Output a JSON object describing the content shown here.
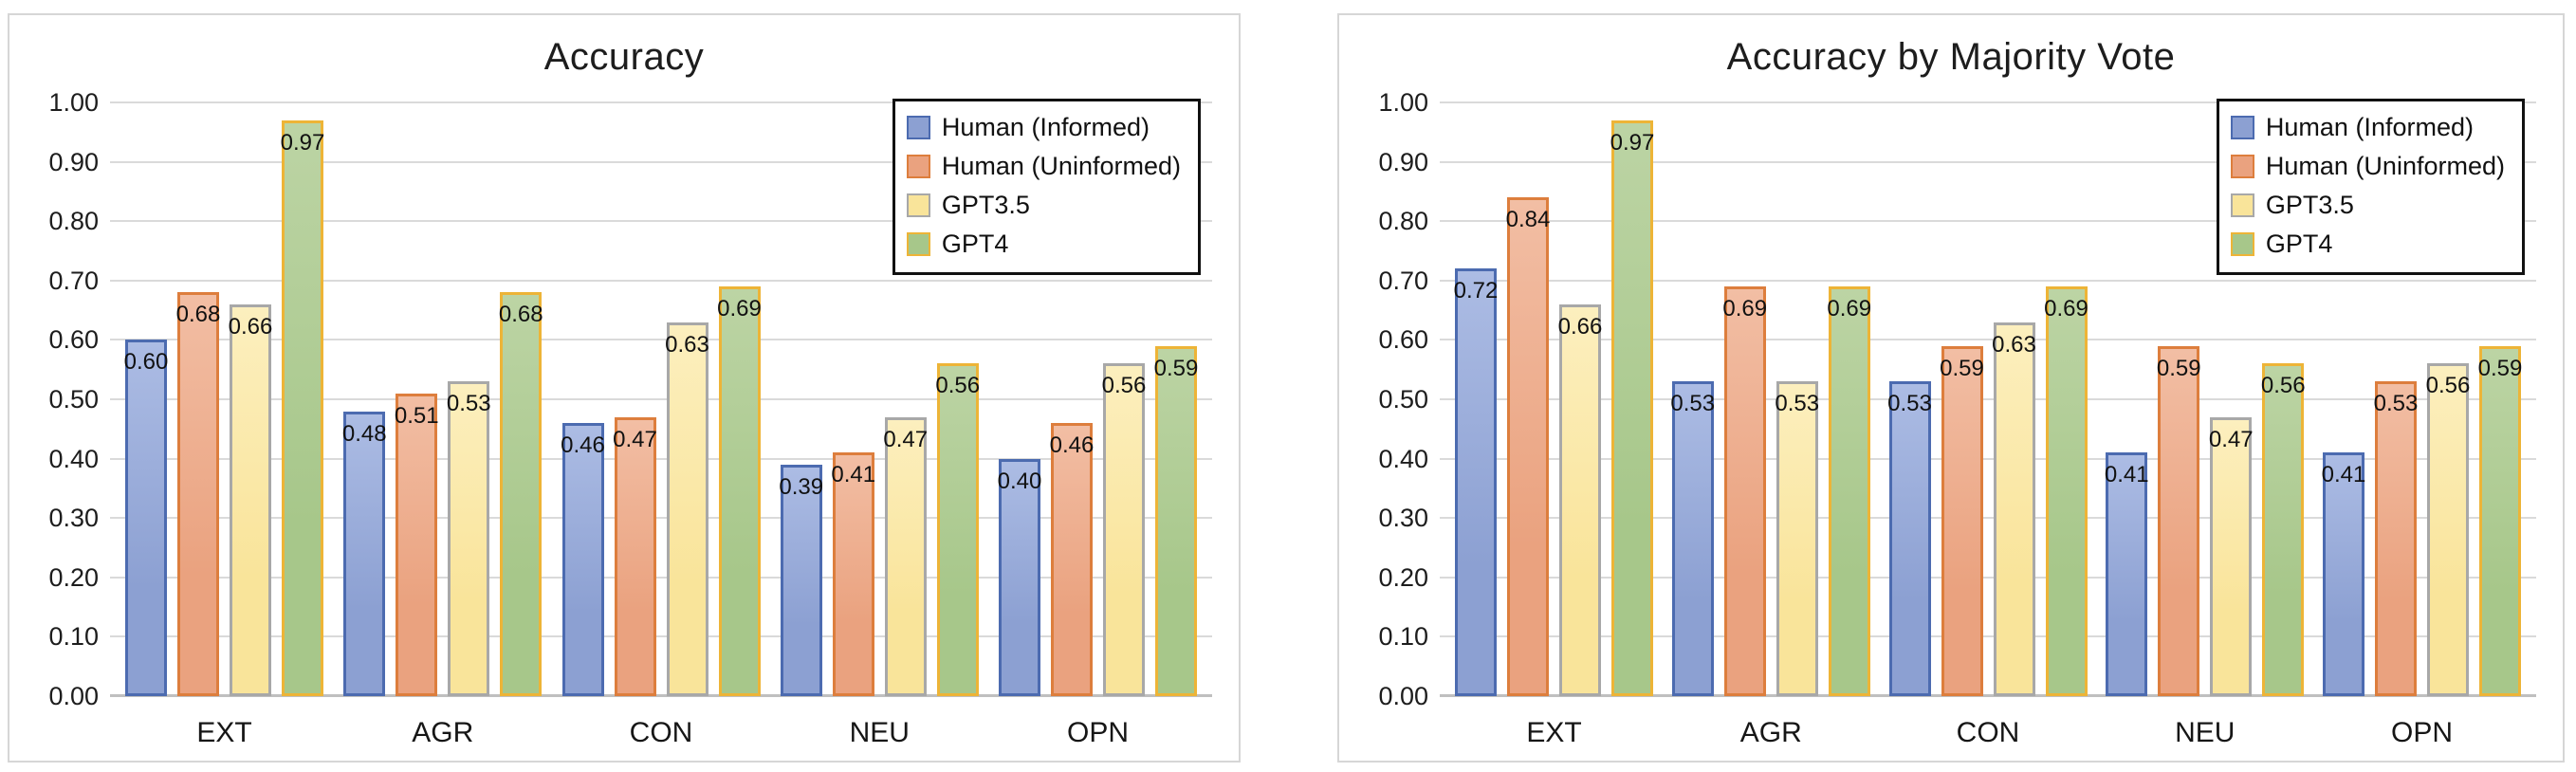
{
  "figure": {
    "background_color": "#ffffff",
    "panel_border_color": "#d6d6d6",
    "gridline_color": "#dadada",
    "axis_line_color": "#bfbfbf",
    "legend_border_color": "#111111"
  },
  "chart_data": [
    {
      "type": "bar",
      "title": "Accuracy",
      "xlabel": "",
      "ylabel": "",
      "categories": [
        "EXT",
        "AGR",
        "CON",
        "NEU",
        "OPN"
      ],
      "series": [
        {
          "name": "Human (Informed)",
          "values": [
            0.6,
            0.48,
            0.46,
            0.39,
            0.4
          ],
          "fill_color": "#8ca0d2",
          "fill_light": "#acbce4",
          "border_color": "#4c6bb0"
        },
        {
          "name": "Human (Uninformed)",
          "values": [
            0.68,
            0.51,
            0.47,
            0.41,
            0.46
          ],
          "fill_color": "#eaa27f",
          "fill_light": "#f2bea4",
          "border_color": "#dd7e3d"
        },
        {
          "name": "GPT3.5",
          "values": [
            0.66,
            0.53,
            0.63,
            0.47,
            0.56
          ],
          "fill_color": "#f9e49a",
          "fill_light": "#fcefbe",
          "border_color": "#a8a8a8"
        },
        {
          "name": "GPT4",
          "values": [
            0.97,
            0.68,
            0.69,
            0.56,
            0.59
          ],
          "fill_color": "#a7c78a",
          "fill_light": "#bcd4a4",
          "border_color": "#edb437"
        }
      ],
      "axis": {
        "ylim": [
          0,
          1
        ],
        "ytick_labels": [
          "0.00",
          "0.10",
          "0.20",
          "0.30",
          "0.40",
          "0.50",
          "0.60",
          "0.70",
          "0.80",
          "0.90",
          "1.00"
        ],
        "grid": true,
        "legend_position": "top-right",
        "value_label_decimals": 2
      }
    },
    {
      "type": "bar",
      "title": "Accuracy by Majority Vote",
      "xlabel": "",
      "ylabel": "",
      "categories": [
        "EXT",
        "AGR",
        "CON",
        "NEU",
        "OPN"
      ],
      "series": [
        {
          "name": "Human (Informed)",
          "values": [
            0.72,
            0.53,
            0.53,
            0.41,
            0.41
          ],
          "fill_color": "#8ca0d2",
          "fill_light": "#acbce4",
          "border_color": "#4c6bb0"
        },
        {
          "name": "Human (Uninformed)",
          "values": [
            0.84,
            0.69,
            0.59,
            0.59,
            0.53
          ],
          "fill_color": "#eaa27f",
          "fill_light": "#f2bea4",
          "border_color": "#dd7e3d"
        },
        {
          "name": "GPT3.5",
          "values": [
            0.66,
            0.53,
            0.63,
            0.47,
            0.56
          ],
          "fill_color": "#f9e49a",
          "fill_light": "#fcefbe",
          "border_color": "#a8a8a8"
        },
        {
          "name": "GPT4",
          "values": [
            0.97,
            0.69,
            0.69,
            0.56,
            0.59
          ],
          "fill_color": "#a7c78a",
          "fill_light": "#bcd4a4",
          "border_color": "#edb437"
        }
      ],
      "axis": {
        "ylim": [
          0,
          1
        ],
        "ytick_labels": [
          "0.00",
          "0.10",
          "0.20",
          "0.30",
          "0.40",
          "0.50",
          "0.60",
          "0.70",
          "0.80",
          "0.90",
          "1.00"
        ],
        "grid": true,
        "legend_position": "top-right",
        "value_label_decimals": 2
      }
    }
  ]
}
